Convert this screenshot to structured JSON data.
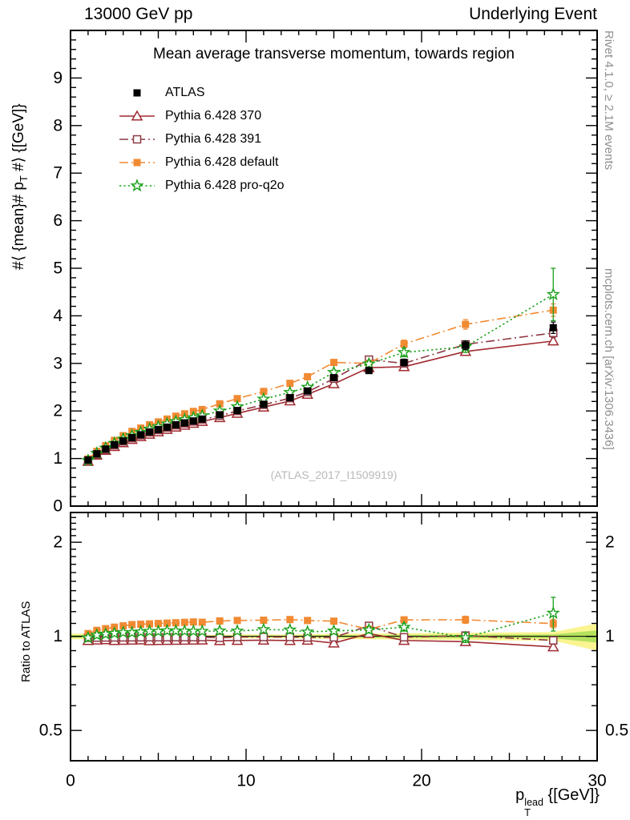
{
  "header": {
    "left": "13000 GeV pp",
    "right": "Underlying Event"
  },
  "watermark": "(ATLAS_2017_I1509919)",
  "side_notes": {
    "top": "Rivet 4.1.0, ≥ 2.1M events",
    "bottom": "mcplots.cern.ch [arXiv:1306.3436]"
  },
  "axis_labels": {
    "y_prefix": "#⟨ {mean}# p",
    "y_sub": "T",
    "y_suffix": " #⟩ {[GeV]}",
    "x_base": "p",
    "x_sup": "lead",
    "x_sub": "T",
    "x_suffix": " {[GeV]}",
    "ratio_y": "Ratio to ATLAS"
  },
  "chart_data": {
    "type": "line",
    "title": "Mean average transverse momentum, towards region",
    "xlabel": "p_T^lead [GeV]",
    "ylabel": "<mean p_T> [GeV]",
    "xlim": [
      0,
      30
    ],
    "ylim": [
      0,
      10
    ],
    "x_major_ticks": [
      0,
      10,
      20,
      30
    ],
    "y_major_ticks": [
      0,
      1,
      2,
      3,
      4,
      5,
      6,
      7,
      8,
      9
    ],
    "ratio": {
      "ylabel": "Ratio to ATLAS",
      "scale": "log",
      "ylim": [
        0.4,
        2.49
      ],
      "major_ticks": [
        0.5,
        1,
        2
      ],
      "minor_ticks": [
        0.4,
        0.6,
        0.7,
        0.8,
        0.9,
        1.1,
        1.2,
        1.3,
        1.4,
        1.5,
        1.6,
        1.7,
        1.8,
        1.9,
        2.1,
        2.2,
        2.3,
        2.4
      ]
    },
    "band": {
      "outer": "#faf385",
      "inner": "#a6dd55"
    },
    "x": [
      1,
      1.5,
      2,
      2.5,
      3,
      3.5,
      4,
      4.5,
      5,
      5.5,
      6,
      6.5,
      7,
      7.5,
      8.5,
      9.5,
      11,
      12.5,
      13.5,
      15,
      17,
      19,
      22.5,
      27.5
    ],
    "series": [
      {
        "id": "atlas",
        "name": "ATLAS",
        "color": "#000000",
        "marker": "square-filled",
        "line": "none",
        "is_ref": true,
        "values": [
          0.97,
          1.1,
          1.2,
          1.29,
          1.37,
          1.44,
          1.5,
          1.56,
          1.61,
          1.66,
          1.71,
          1.75,
          1.79,
          1.83,
          1.92,
          2.01,
          2.14,
          2.28,
          2.42,
          2.7,
          2.85,
          3.02,
          3.38,
          3.75
        ],
        "yerr": [
          0.02,
          0.02,
          0.02,
          0.02,
          0.02,
          0.02,
          0.02,
          0.02,
          0.02,
          0.02,
          0.02,
          0.02,
          0.02,
          0.02,
          0.02,
          0.03,
          0.03,
          0.03,
          0.04,
          0.05,
          0.06,
          0.07,
          0.09,
          0.12
        ]
      },
      {
        "id": "p370",
        "name": "Pythia 6.428 370",
        "color": "#a12b32",
        "marker": "triangle-open",
        "line": "solid",
        "is_ref": false,
        "values": [
          0.94,
          1.07,
          1.17,
          1.25,
          1.33,
          1.4,
          1.46,
          1.51,
          1.56,
          1.61,
          1.66,
          1.7,
          1.74,
          1.78,
          1.86,
          1.95,
          2.08,
          2.21,
          2.35,
          2.57,
          2.91,
          2.93,
          3.25,
          3.47
        ],
        "yerr": [
          0.01,
          0.01,
          0.01,
          0.01,
          0.01,
          0.01,
          0.01,
          0.01,
          0.01,
          0.01,
          0.01,
          0.01,
          0.01,
          0.01,
          0.02,
          0.02,
          0.02,
          0.02,
          0.03,
          0.03,
          0.04,
          0.05,
          0.06,
          0.08
        ]
      },
      {
        "id": "p391",
        "name": "Pythia 6.428 391",
        "color": "#8e3a45",
        "marker": "square-open",
        "line": "dashdot",
        "is_ref": false,
        "values": [
          0.96,
          1.09,
          1.19,
          1.28,
          1.36,
          1.43,
          1.49,
          1.55,
          1.6,
          1.65,
          1.7,
          1.74,
          1.78,
          1.82,
          1.9,
          2.0,
          2.13,
          2.27,
          2.4,
          2.68,
          3.08,
          3.0,
          3.4,
          3.64
        ],
        "yerr": [
          0.01,
          0.01,
          0.01,
          0.01,
          0.01,
          0.01,
          0.01,
          0.01,
          0.01,
          0.01,
          0.01,
          0.01,
          0.01,
          0.01,
          0.02,
          0.02,
          0.02,
          0.02,
          0.03,
          0.03,
          0.04,
          0.05,
          0.07,
          0.1
        ]
      },
      {
        "id": "pdefault",
        "name": "Pythia 6.428 default",
        "color": "#f18a33",
        "marker": "square-filled",
        "line": "dashdot",
        "is_ref": false,
        "values": [
          0.99,
          1.15,
          1.27,
          1.38,
          1.48,
          1.57,
          1.64,
          1.71,
          1.77,
          1.83,
          1.89,
          1.94,
          1.99,
          2.03,
          2.15,
          2.26,
          2.41,
          2.58,
          2.72,
          3.02,
          3.0,
          3.41,
          3.82,
          4.12
        ],
        "yerr": [
          0.02,
          0.02,
          0.02,
          0.02,
          0.02,
          0.02,
          0.02,
          0.02,
          0.02,
          0.02,
          0.02,
          0.02,
          0.02,
          0.02,
          0.03,
          0.03,
          0.03,
          0.03,
          0.04,
          0.05,
          0.06,
          0.08,
          0.1,
          0.13
        ]
      },
      {
        "id": "proq2o",
        "name": "Pythia 6.428 pro-q2o",
        "color": "#19a019",
        "marker": "star-open",
        "line": "dotted",
        "is_ref": false,
        "values": [
          0.96,
          1.11,
          1.22,
          1.32,
          1.41,
          1.48,
          1.55,
          1.62,
          1.67,
          1.73,
          1.78,
          1.82,
          1.86,
          1.9,
          2.0,
          2.09,
          2.25,
          2.39,
          2.5,
          2.81,
          2.99,
          3.23,
          3.35,
          4.45
        ],
        "yerr": [
          0.02,
          0.02,
          0.02,
          0.02,
          0.02,
          0.02,
          0.02,
          0.02,
          0.02,
          0.02,
          0.02,
          0.02,
          0.02,
          0.02,
          0.03,
          0.03,
          0.03,
          0.04,
          0.04,
          0.05,
          0.07,
          0.09,
          0.12,
          0.55
        ]
      }
    ]
  }
}
